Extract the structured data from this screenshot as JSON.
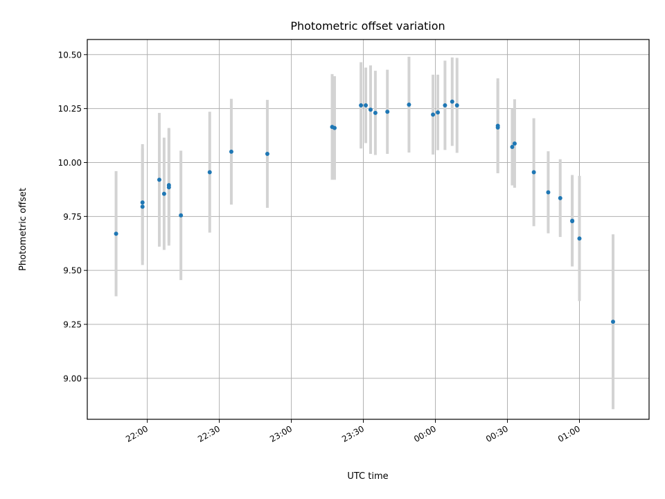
{
  "chart_data": {
    "type": "scatter",
    "title": "Photometric offset variation",
    "xlabel": "UTC time",
    "ylabel": "Photometric offset",
    "x_ticks": [
      "22:00",
      "22:30",
      "23:00",
      "23:30",
      "00:00",
      "00:30",
      "01:00"
    ],
    "y_ticks": [
      "9.00",
      "9.25",
      "9.50",
      "9.75",
      "10.00",
      "10.25",
      "10.50"
    ],
    "xlim": [
      "21:35",
      "01:29"
    ],
    "ylim": [
      8.81,
      10.57
    ],
    "grid": true,
    "colors": {
      "point": "#1f77b4",
      "errorbar": "#d3d3d3",
      "grid": "#b0b0b0"
    },
    "points": [
      {
        "x": "21:47",
        "y": 9.67,
        "yerr": 0.29
      },
      {
        "x": "21:58",
        "y": 9.795,
        "yerr": 0.27
      },
      {
        "x": "21:58",
        "y": 9.815,
        "yerr": 0.27
      },
      {
        "x": "22:05",
        "y": 9.92,
        "yerr": 0.31
      },
      {
        "x": "22:07",
        "y": 9.855,
        "yerr": 0.26
      },
      {
        "x": "22:09",
        "y": 9.895,
        "yerr": 0.265
      },
      {
        "x": "22:09",
        "y": 9.885,
        "yerr": 0.27
      },
      {
        "x": "22:14",
        "y": 9.755,
        "yerr": 0.3
      },
      {
        "x": "22:26",
        "y": 9.955,
        "yerr": 0.28
      },
      {
        "x": "22:35",
        "y": 10.05,
        "yerr": 0.245
      },
      {
        "x": "22:50",
        "y": 10.04,
        "yerr": 0.25
      },
      {
        "x": "23:17",
        "y": 10.165,
        "yerr": 0.245
      },
      {
        "x": "23:18",
        "y": 10.16,
        "yerr": 0.24
      },
      {
        "x": "23:29",
        "y": 10.265,
        "yerr": 0.2
      },
      {
        "x": "23:31",
        "y": 10.265,
        "yerr": 0.175
      },
      {
        "x": "23:33",
        "y": 10.245,
        "yerr": 0.205
      },
      {
        "x": "23:35",
        "y": 10.23,
        "yerr": 0.195
      },
      {
        "x": "23:40",
        "y": 10.235,
        "yerr": 0.195
      },
      {
        "x": "23:49",
        "y": 10.268,
        "yerr": 0.222
      },
      {
        "x": "23:59",
        "y": 10.222,
        "yerr": 0.185
      },
      {
        "x": "00:01",
        "y": 10.232,
        "yerr": 0.175
      },
      {
        "x": "00:04",
        "y": 10.265,
        "yerr": 0.207
      },
      {
        "x": "00:07",
        "y": 10.282,
        "yerr": 0.205
      },
      {
        "x": "00:09",
        "y": 10.265,
        "yerr": 0.22
      },
      {
        "x": "00:26",
        "y": 10.17,
        "yerr": 0.22
      },
      {
        "x": "00:26",
        "y": 10.162,
        "yerr": 0.21
      },
      {
        "x": "00:32",
        "y": 10.072,
        "yerr": 0.178
      },
      {
        "x": "00:33",
        "y": 10.088,
        "yerr": 0.205
      },
      {
        "x": "00:41",
        "y": 9.955,
        "yerr": 0.25
      },
      {
        "x": "00:47",
        "y": 9.862,
        "yerr": 0.19
      },
      {
        "x": "00:52",
        "y": 9.835,
        "yerr": 0.18
      },
      {
        "x": "00:57",
        "y": 9.73,
        "yerr": 0.212
      },
      {
        "x": "00:57",
        "y": 9.728,
        "yerr": 0.205
      },
      {
        "x": "01:00",
        "y": 9.648,
        "yerr": 0.29
      },
      {
        "x": "01:14",
        "y": 9.262,
        "yerr": 0.405
      }
    ]
  }
}
